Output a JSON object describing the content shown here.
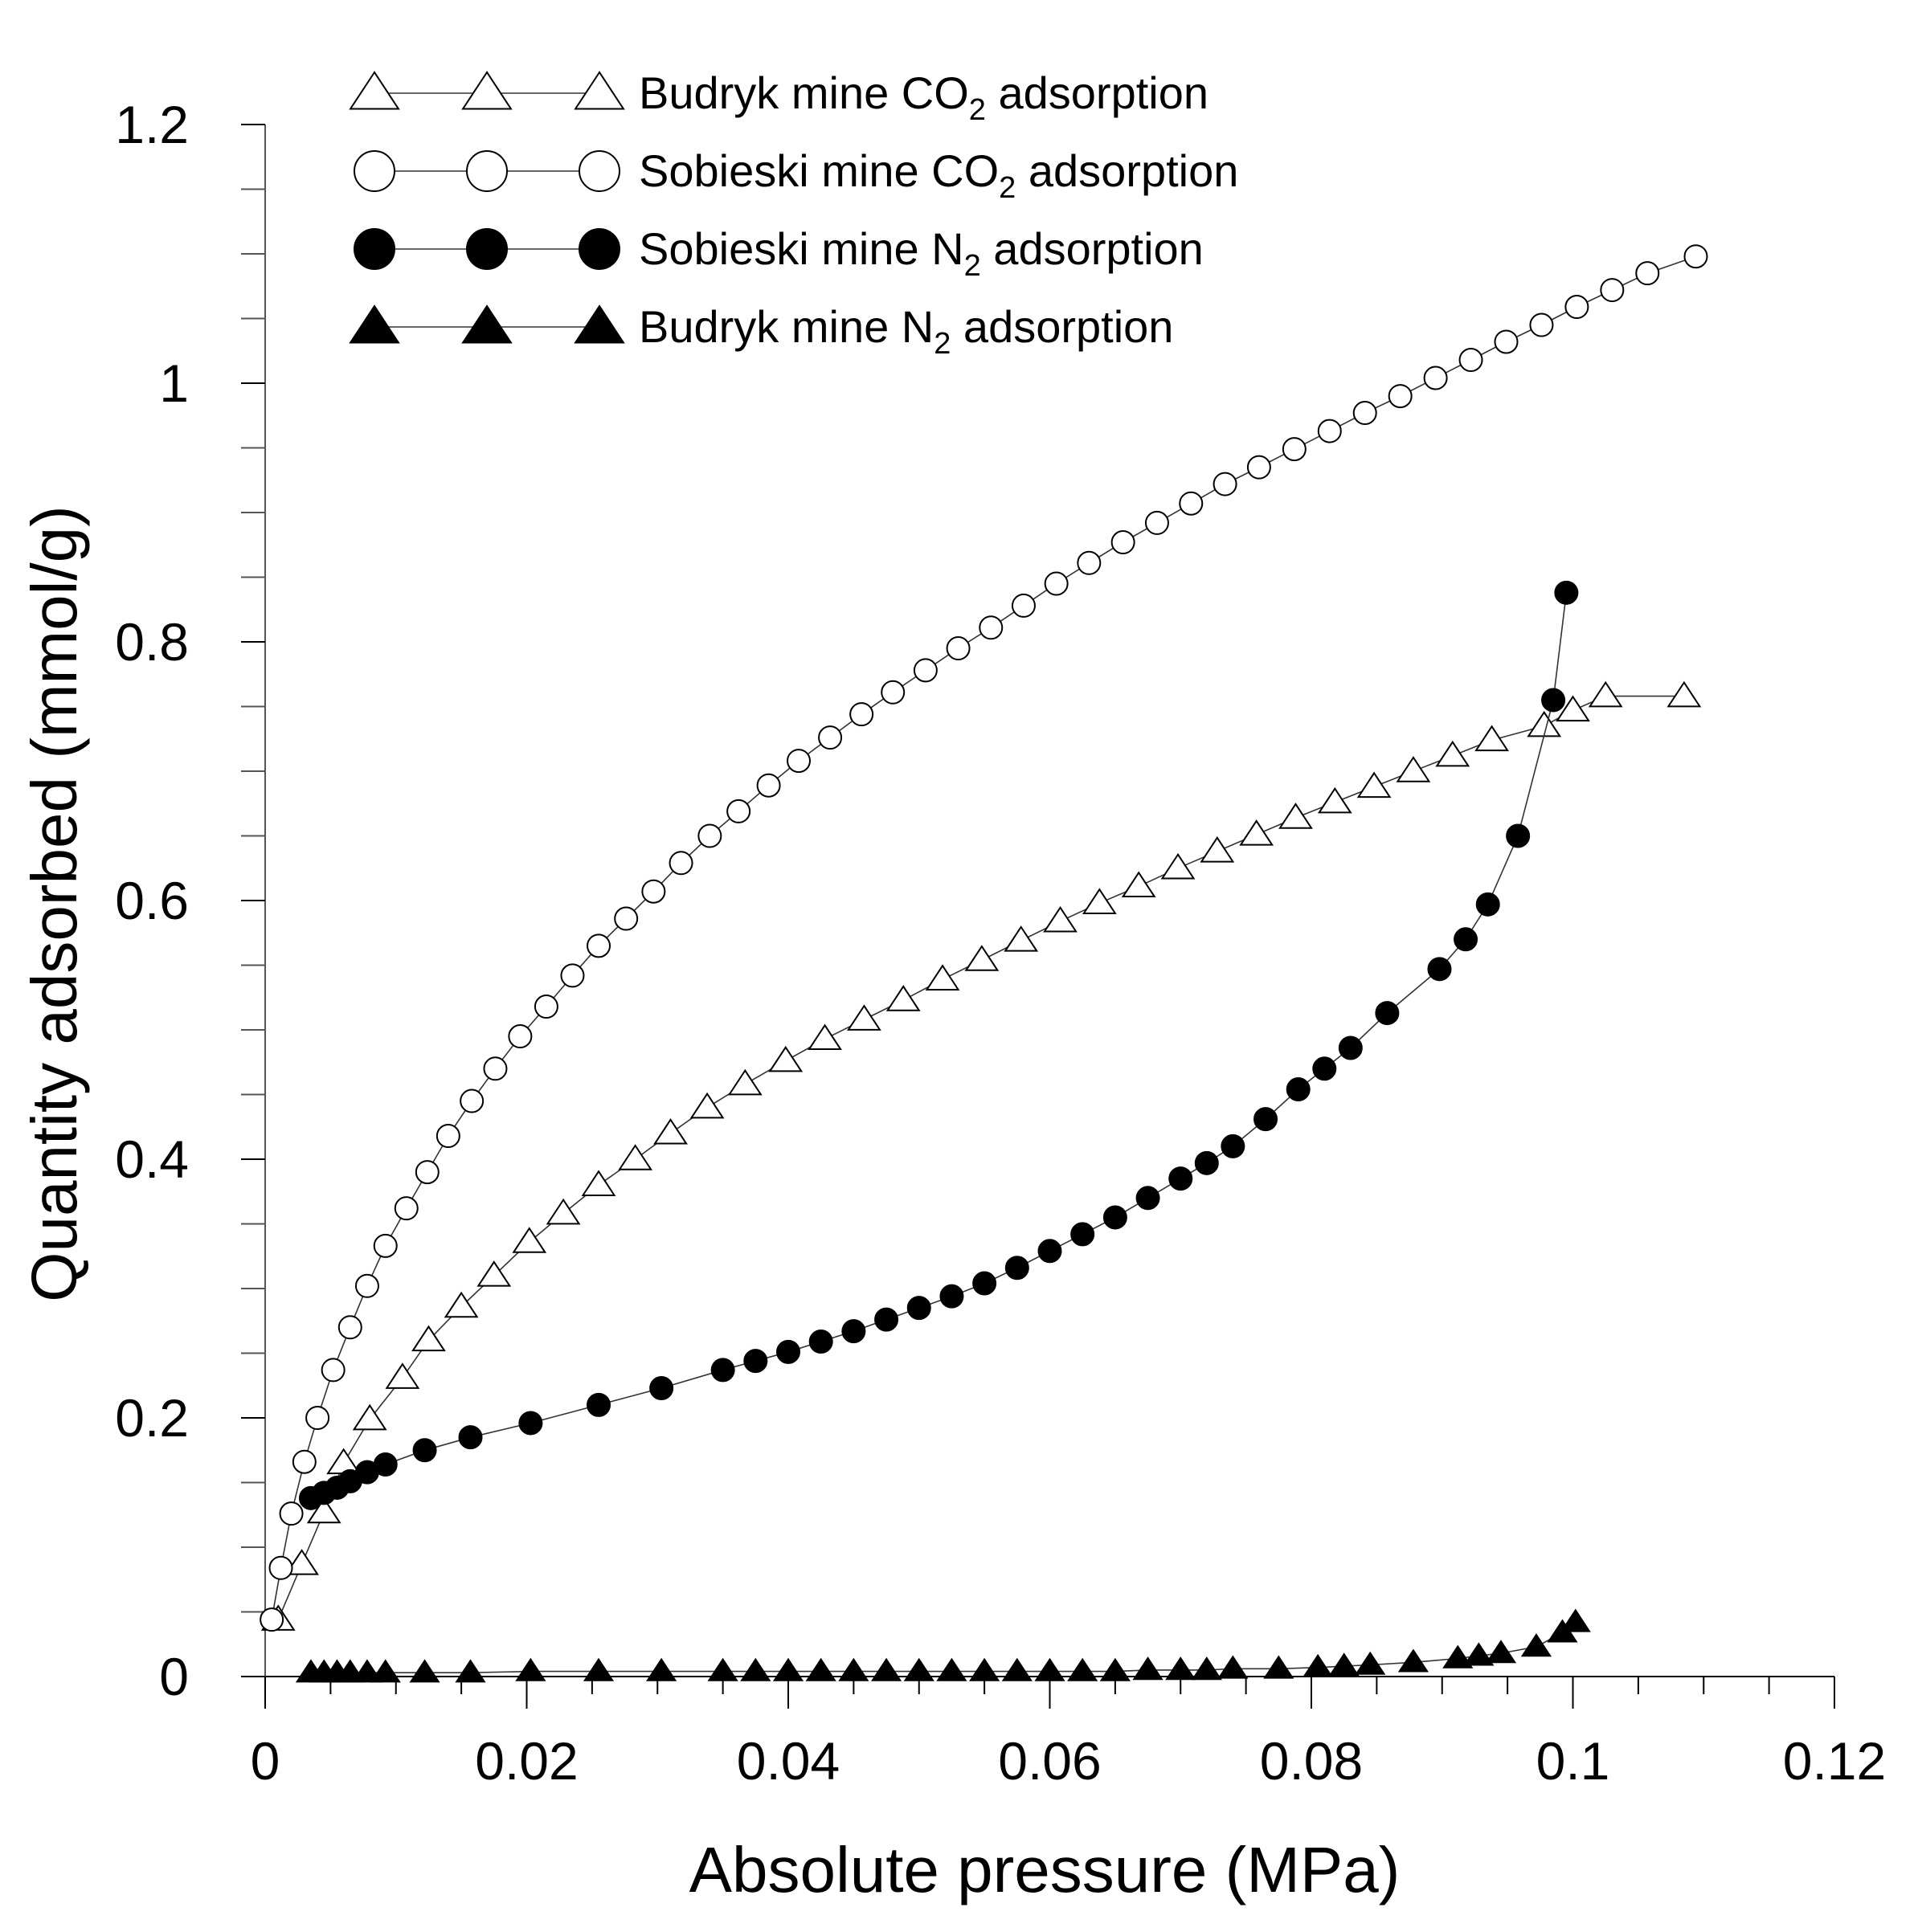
{
  "chart_data": {
    "type": "scatter",
    "xlabel": "Absolute pressure (MPa)",
    "ylabel": "Quantity adsorbed (mmol/g)",
    "xlim": [
      0,
      0.12
    ],
    "ylim": [
      0,
      1.2
    ],
    "xticks": [
      0,
      0.02,
      0.04,
      0.06,
      0.08,
      0.1,
      0.12
    ],
    "xtick_labels": [
      "0",
      "0.02",
      "0.04",
      "0.06",
      "0.08",
      "0.1",
      "0.12"
    ],
    "yticks": [
      0,
      0.2,
      0.4,
      0.6,
      0.8,
      1,
      1.2
    ],
    "ytick_labels": [
      "0",
      "0.2",
      "0.4",
      "0.6",
      "0.8",
      "1",
      "1.2"
    ],
    "grid": false,
    "legend_position": "top-left",
    "series": [
      {
        "name": "Budryk mine CO2 adsorption",
        "legend_prefix": "Budryk mine CO",
        "legend_sub": "2",
        "legend_suffix": " adsorption",
        "marker": "triangle-open",
        "x": [
          0.001,
          0.0028,
          0.0045,
          0.006,
          0.008,
          0.0105,
          0.0125,
          0.015,
          0.0175,
          0.0202,
          0.0228,
          0.0255,
          0.0283,
          0.031,
          0.0338,
          0.0367,
          0.0398,
          0.0428,
          0.0458,
          0.0488,
          0.0518,
          0.0548,
          0.0578,
          0.0608,
          0.0638,
          0.0668,
          0.0698,
          0.0728,
          0.0758,
          0.0788,
          0.0818,
          0.0848,
          0.0878,
          0.0908,
          0.0938,
          0.0978,
          0.1,
          0.1025,
          0.1085
        ],
        "y": [
          0.044,
          0.087,
          0.127,
          0.165,
          0.199,
          0.231,
          0.26,
          0.286,
          0.31,
          0.336,
          0.358,
          0.38,
          0.4,
          0.42,
          0.44,
          0.458,
          0.476,
          0.493,
          0.508,
          0.523,
          0.539,
          0.554,
          0.569,
          0.584,
          0.598,
          0.611,
          0.625,
          0.638,
          0.651,
          0.664,
          0.676,
          0.688,
          0.7,
          0.712,
          0.724,
          0.735,
          0.747,
          0.758,
          0.758
        ]
      },
      {
        "name": "Sobieski mine CO2 adsorption",
        "legend_prefix": "Sobieski mine CO",
        "legend_sub": "2",
        "legend_suffix": " adsorption",
        "marker": "circle-open",
        "x": [
          0.0005,
          0.0012,
          0.002,
          0.003,
          0.004,
          0.0052,
          0.0065,
          0.0078,
          0.0092,
          0.0108,
          0.0124,
          0.014,
          0.0158,
          0.0176,
          0.0195,
          0.0215,
          0.0235,
          0.0255,
          0.0276,
          0.0297,
          0.0318,
          0.034,
          0.0362,
          0.0385,
          0.0408,
          0.0432,
          0.0456,
          0.048,
          0.0505,
          0.053,
          0.0555,
          0.058,
          0.0605,
          0.063,
          0.0656,
          0.0682,
          0.0708,
          0.0734,
          0.076,
          0.0787,
          0.0814,
          0.0841,
          0.0868,
          0.0895,
          0.0922,
          0.0949,
          0.0976,
          0.1003,
          0.103,
          0.1057,
          0.1094
        ],
        "y": [
          0.044,
          0.084,
          0.126,
          0.166,
          0.2,
          0.237,
          0.27,
          0.302,
          0.333,
          0.362,
          0.39,
          0.418,
          0.445,
          0.47,
          0.495,
          0.518,
          0.542,
          0.565,
          0.586,
          0.607,
          0.629,
          0.65,
          0.669,
          0.689,
          0.708,
          0.726,
          0.744,
          0.761,
          0.778,
          0.795,
          0.811,
          0.828,
          0.845,
          0.861,
          0.877,
          0.892,
          0.907,
          0.922,
          0.935,
          0.949,
          0.963,
          0.977,
          0.99,
          1.004,
          1.018,
          1.032,
          1.045,
          1.059,
          1.072,
          1.085,
          1.098
        ]
      },
      {
        "name": "Sobieski mine N2 adsorption",
        "legend_prefix": "Sobieski mine N",
        "legend_sub": "2",
        "legend_suffix": " adsorption",
        "marker": "circle-filled",
        "x": [
          0.0035,
          0.0045,
          0.0055,
          0.0065,
          0.0078,
          0.0092,
          0.0122,
          0.0157,
          0.0203,
          0.0255,
          0.0303,
          0.035,
          0.0375,
          0.04,
          0.0425,
          0.045,
          0.0475,
          0.05,
          0.0525,
          0.055,
          0.0575,
          0.06,
          0.0625,
          0.065,
          0.0675,
          0.07,
          0.072,
          0.074,
          0.0765,
          0.079,
          0.081,
          0.083,
          0.0858,
          0.0898,
          0.0918,
          0.0935,
          0.0958,
          0.0985,
          0.0995
        ],
        "y": [
          0.138,
          0.142,
          0.146,
          0.151,
          0.158,
          0.164,
          0.175,
          0.185,
          0.196,
          0.21,
          0.223,
          0.237,
          0.244,
          0.251,
          0.259,
          0.267,
          0.276,
          0.285,
          0.294,
          0.304,
          0.316,
          0.329,
          0.342,
          0.355,
          0.37,
          0.385,
          0.397,
          0.41,
          0.431,
          0.454,
          0.47,
          0.486,
          0.513,
          0.547,
          0.57,
          0.597,
          0.65,
          0.755,
          0.838
        ]
      },
      {
        "name": "Budryk mine N2 adsorption",
        "legend_prefix": "Budryk mine N",
        "legend_sub": "2",
        "legend_suffix": " adsorption",
        "marker": "triangle-filled",
        "x": [
          0.0035,
          0.0045,
          0.0055,
          0.0065,
          0.0078,
          0.0092,
          0.0122,
          0.0157,
          0.0203,
          0.0255,
          0.0303,
          0.035,
          0.0375,
          0.04,
          0.0425,
          0.045,
          0.0475,
          0.05,
          0.0525,
          0.055,
          0.0575,
          0.06,
          0.0625,
          0.065,
          0.0675,
          0.07,
          0.072,
          0.074,
          0.0775,
          0.0805,
          0.0825,
          0.0845,
          0.0878,
          0.0912,
          0.0928,
          0.0945,
          0.0972,
          0.0992,
          0.1002
        ],
        "y": [
          0.003,
          0.003,
          0.003,
          0.003,
          0.003,
          0.003,
          0.003,
          0.003,
          0.004,
          0.004,
          0.004,
          0.004,
          0.004,
          0.004,
          0.004,
          0.004,
          0.004,
          0.004,
          0.004,
          0.004,
          0.004,
          0.004,
          0.004,
          0.004,
          0.005,
          0.005,
          0.005,
          0.006,
          0.006,
          0.007,
          0.008,
          0.009,
          0.011,
          0.014,
          0.016,
          0.018,
          0.023,
          0.034,
          0.042
        ]
      }
    ]
  }
}
